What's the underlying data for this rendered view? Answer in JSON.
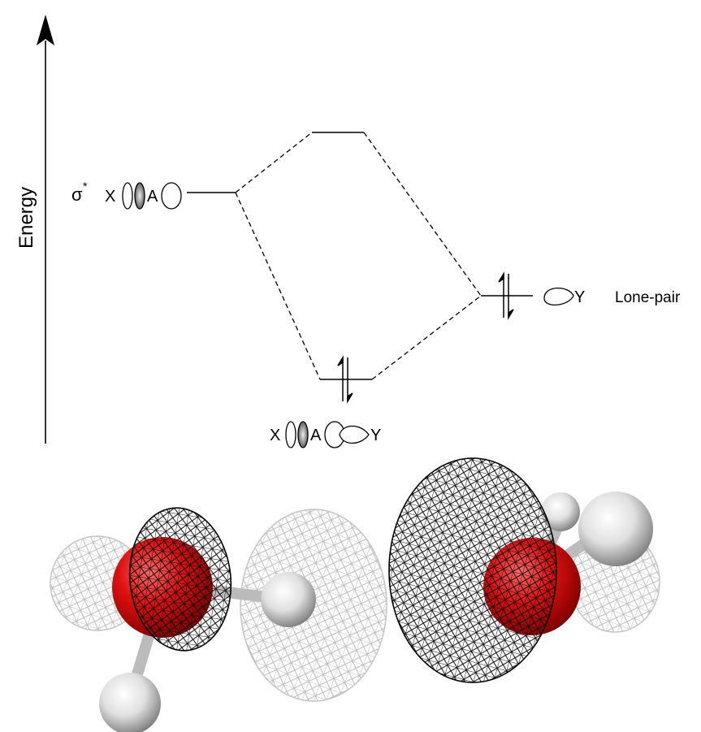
{
  "diagram": {
    "axis_label": "Energy",
    "sigma_star": {
      "symbol": "σ",
      "superscript": "*"
    },
    "left_orbital": {
      "atom1": "X",
      "atom2": "A"
    },
    "bonding_orbital": {
      "atom1": "X",
      "atom2": "A",
      "atom3": "Y"
    },
    "right_orbital": {
      "atom": "Y",
      "caption": "Lone-pair"
    }
  },
  "render": {
    "oxygen_color": "#e01010",
    "hydrogen_color": "#e8e8e8",
    "mesh_dark_color": "#000000",
    "mesh_light_color": "#bdbdbd"
  }
}
